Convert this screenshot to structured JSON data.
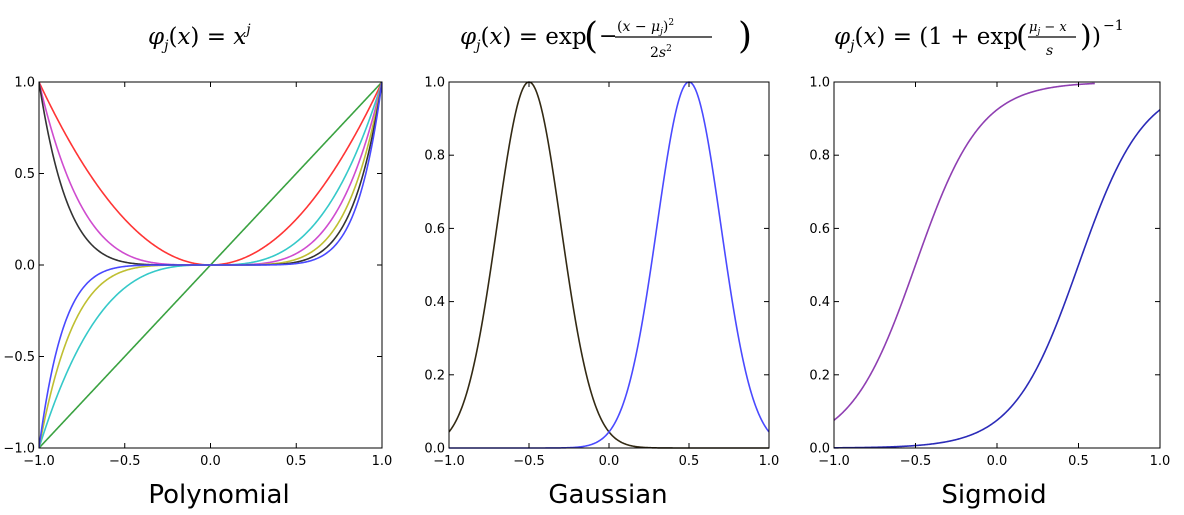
{
  "chart_data": [
    {
      "type": "line",
      "title": "φj(x) = x^j",
      "xlabel": "Polynomial",
      "ylabel": "",
      "xlim": [
        -1.0,
        1.0
      ],
      "ylim": [
        -1.0,
        1.0
      ],
      "xticks": [
        "−1.0",
        "−0.5",
        "0.0",
        "0.5",
        "1.0"
      ],
      "yticks": [
        "−1.0",
        "−0.5",
        "0.0",
        "0.5",
        "1.0"
      ],
      "legend": "none",
      "grid": false,
      "series": [
        {
          "function": "x^1",
          "color": "#3aa241"
        },
        {
          "function": "x^2",
          "color": "#ff3535"
        },
        {
          "function": "x^3",
          "color": "#35c9c9"
        },
        {
          "function": "x^4",
          "color": "#cf4ccf"
        },
        {
          "function": "x^5",
          "color": "#bfbf31"
        },
        {
          "function": "x^6",
          "color": "#333333"
        },
        {
          "function": "x^7",
          "color": "#4949ff"
        }
      ]
    },
    {
      "type": "line",
      "title": "φj(x) = exp(−(x − μj)² / 2s²)",
      "xlabel": "Gaussian",
      "ylabel": "",
      "xlim": [
        -1.0,
        1.0
      ],
      "ylim": [
        0.0,
        1.0
      ],
      "xticks": [
        "−1.0",
        "−0.5",
        "0.0",
        "0.5",
        "1.0"
      ],
      "yticks": [
        "0.0",
        "0.2",
        "0.4",
        "0.6",
        "0.8",
        "1.0"
      ],
      "legend": "none",
      "grid": false,
      "s": 0.2,
      "series": [
        {
          "mu": -0.5,
          "color": "#332a14"
        },
        {
          "mu": 0.5,
          "color": "#4a4aff"
        }
      ]
    },
    {
      "type": "line",
      "title": "φj(x) = (1 + exp((μj − x)/s))^−1",
      "xlabel": "Sigmoid",
      "ylabel": "",
      "xlim": [
        -1.0,
        1.0
      ],
      "ylim": [
        0.0,
        1.0
      ],
      "xticks": [
        "−1.0",
        "−0.5",
        "0.0",
        "0.5",
        "1.0"
      ],
      "yticks": [
        "0.0",
        "0.2",
        "0.4",
        "0.6",
        "0.8",
        "1.0"
      ],
      "legend": "none",
      "grid": false,
      "s": 0.2,
      "series": [
        {
          "mu": -0.5,
          "color": "#8f3fb2",
          "x_range": [
            -1.0,
            0.6
          ]
        },
        {
          "mu": 0.5,
          "color": "#2b2bb8",
          "x_range": [
            -1.0,
            1.0
          ]
        }
      ]
    }
  ]
}
